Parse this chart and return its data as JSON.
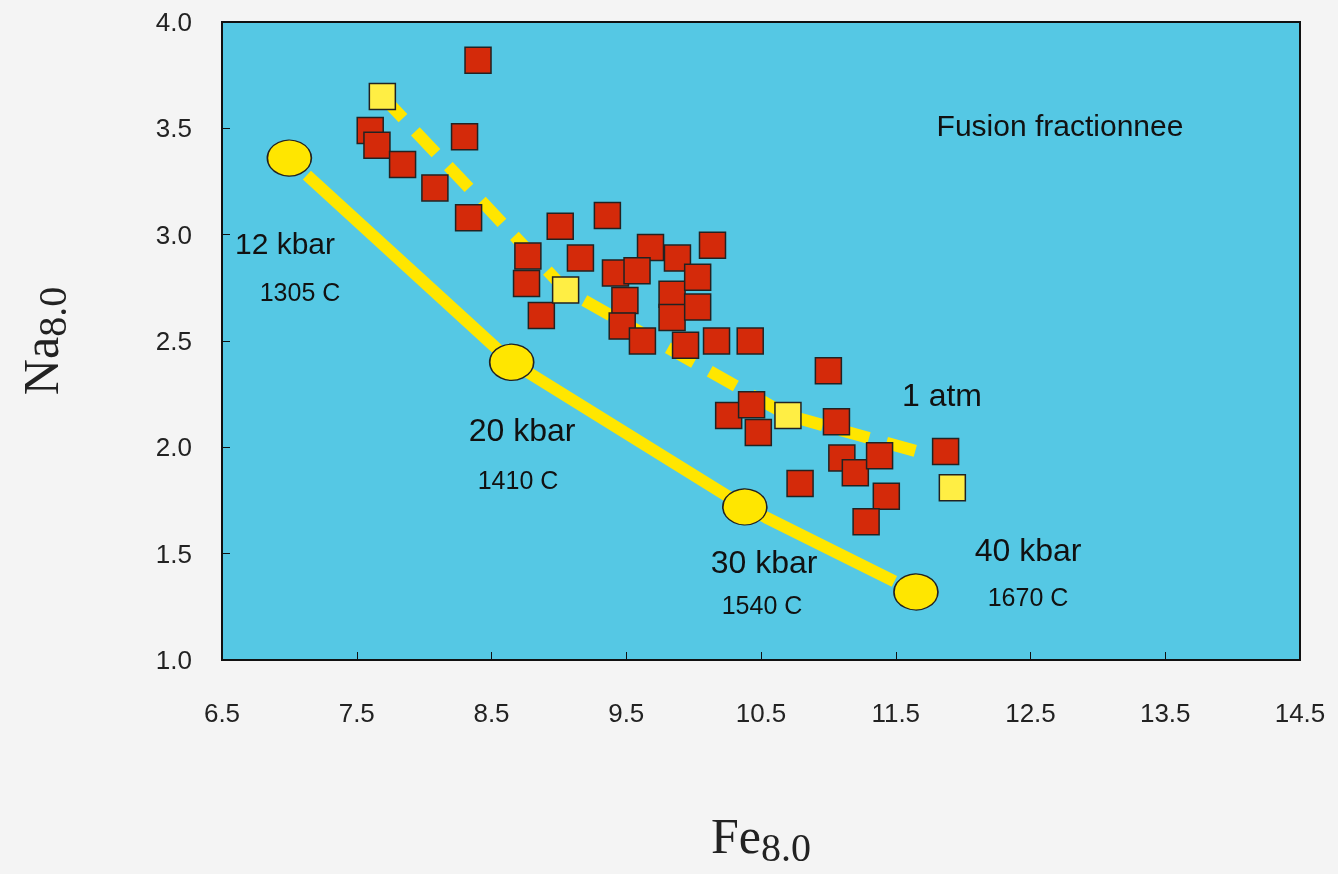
{
  "chart_data": {
    "type": "scatter",
    "xlabel": "Fe$_{8.0}$",
    "ylabel": "Na$_{8.0}$",
    "xlim": [
      6.5,
      14.5
    ],
    "xticks": [
      6.5,
      7.5,
      8.5,
      9.5,
      10.5,
      11.5,
      12.5,
      13.5,
      14.5
    ],
    "ylim": [
      1.0,
      4.0
    ],
    "yticks": [
      {
        "value": 1,
        "label": "1.0"
      },
      1.5,
      {
        "value": 2,
        "label": "2.0"
      },
      2.5,
      {
        "value": 3,
        "label": "3.0"
      },
      3.5,
      {
        "value": 4,
        "label": "4.0"
      }
    ],
    "grid": false,
    "series": [
      {
        "type": "line",
        "color": "#ffe600",
        "marker": "none",
        "line_style": "dashed",
        "x": [
          7.69,
          9.05,
          10.7,
          11.72
        ],
        "values": [
          3.65,
          2.74,
          2.15,
          1.97
        ]
      },
      {
        "type": "line",
        "color": "#ffe600",
        "marker": "none",
        "line_style": "solid",
        "x": [
          7.13,
          8.65,
          10.38,
          11.49
        ],
        "values": [
          3.28,
          2.4,
          1.72,
          1.37
        ]
      },
      {
        "type": "scatter",
        "color": "#ffe600",
        "marker": "circle",
        "x": [
          7.0,
          8.65,
          10.38,
          11.65
        ],
        "values": [
          3.36,
          2.4,
          1.72,
          1.32
        ]
      },
      {
        "type": "scatter",
        "color": "#d42a0a",
        "marker": "square",
        "x": [
          8.4,
          7.6,
          7.65,
          7.84,
          8.3,
          8.08,
          8.33,
          9.01,
          9.36,
          9.16,
          8.77,
          8.76,
          8.87,
          9.68,
          9.42,
          9.58,
          9.49,
          9.47,
          9.62,
          9.88,
          9.84,
          9.84,
          9.94,
          10.03,
          10.03,
          10.14,
          10.17,
          10.42,
          10.26,
          10.43,
          10.48,
          11.0,
          11.06,
          11.1,
          11.2,
          10.79,
          11.38,
          11.43,
          11.28,
          11.87
        ],
        "values": [
          3.82,
          3.49,
          3.42,
          3.33,
          3.46,
          3.22,
          3.08,
          3.04,
          3.09,
          2.89,
          2.9,
          2.77,
          2.62,
          2.94,
          2.82,
          2.83,
          2.69,
          2.57,
          2.5,
          2.89,
          2.72,
          2.61,
          2.48,
          2.8,
          2.66,
          2.95,
          2.5,
          2.5,
          2.15,
          2.2,
          2.07,
          2.36,
          2.12,
          1.95,
          1.88,
          1.83,
          1.96,
          1.77,
          1.65,
          1.98
        ]
      },
      {
        "type": "scatter",
        "color": "#ffee44",
        "marker": "square",
        "x": [
          7.69,
          9.05,
          10.7,
          11.92
        ],
        "values": [
          3.65,
          2.74,
          2.15,
          1.81
        ]
      }
    ],
    "annotations": [
      "Fusion fractionnee",
      "12 kbar",
      "1305 C",
      "20 kbar",
      "1410 C",
      "30 kbar",
      "1540 C",
      "40 kbar",
      "1670 C",
      "1 atm"
    ]
  }
}
